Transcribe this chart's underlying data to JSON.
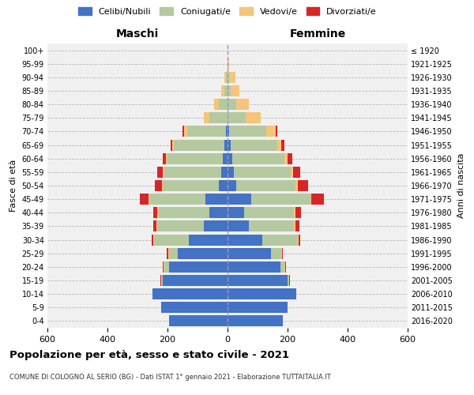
{
  "age_groups": [
    "0-4",
    "5-9",
    "10-14",
    "15-19",
    "20-24",
    "25-29",
    "30-34",
    "35-39",
    "40-44",
    "45-49",
    "50-54",
    "55-59",
    "60-64",
    "65-69",
    "70-74",
    "75-79",
    "80-84",
    "85-89",
    "90-94",
    "95-99",
    "100+"
  ],
  "birth_years": [
    "2016-2020",
    "2011-2015",
    "2006-2010",
    "2001-2005",
    "1996-2000",
    "1991-1995",
    "1986-1990",
    "1981-1985",
    "1976-1980",
    "1971-1975",
    "1966-1970",
    "1961-1965",
    "1956-1960",
    "1951-1955",
    "1946-1950",
    "1941-1945",
    "1936-1940",
    "1931-1935",
    "1926-1930",
    "1921-1925",
    "≤ 1920"
  ],
  "males": {
    "celibe": [
      195,
      220,
      250,
      215,
      195,
      165,
      130,
      80,
      60,
      75,
      30,
      20,
      15,
      10,
      5,
      0,
      0,
      0,
      0,
      0,
      0
    ],
    "coniugato": [
      0,
      0,
      0,
      5,
      15,
      30,
      115,
      155,
      170,
      185,
      185,
      190,
      185,
      170,
      130,
      60,
      30,
      10,
      5,
      0,
      0
    ],
    "vedovo": [
      0,
      0,
      0,
      1,
      2,
      2,
      3,
      3,
      3,
      3,
      3,
      5,
      5,
      5,
      10,
      20,
      15,
      10,
      5,
      0,
      0
    ],
    "divorziato": [
      0,
      0,
      0,
      2,
      3,
      5,
      5,
      10,
      15,
      30,
      25,
      20,
      10,
      5,
      5,
      0,
      0,
      0,
      0,
      0,
      0
    ]
  },
  "females": {
    "nubile": [
      185,
      200,
      230,
      200,
      175,
      145,
      115,
      70,
      55,
      80,
      30,
      20,
      15,
      10,
      5,
      0,
      0,
      0,
      0,
      0,
      0
    ],
    "coniugata": [
      0,
      0,
      0,
      5,
      15,
      35,
      120,
      150,
      165,
      195,
      195,
      190,
      175,
      155,
      125,
      60,
      30,
      10,
      5,
      0,
      0
    ],
    "vedova": [
      0,
      0,
      0,
      1,
      2,
      2,
      3,
      5,
      5,
      5,
      8,
      8,
      10,
      15,
      30,
      50,
      40,
      30,
      20,
      5,
      0
    ],
    "divorziata": [
      0,
      0,
      0,
      1,
      2,
      3,
      5,
      15,
      20,
      40,
      35,
      25,
      15,
      10,
      5,
      0,
      0,
      0,
      0,
      0,
      0
    ]
  },
  "colors": {
    "celibe": "#4472c4",
    "coniugato": "#b5c9a1",
    "vedovo": "#f5c57a",
    "divorziato": "#d9242a"
  },
  "title": "Popolazione per età, sesso e stato civile - 2021",
  "subtitle": "COMUNE DI COLOGNO AL SERIO (BG) - Dati ISTAT 1° gennaio 2021 - Elaborazione TUTTAITALIA.IT",
  "xlabel_left": "Maschi",
  "xlabel_right": "Femmine",
  "ylabel_left": "Fasce di età",
  "ylabel_right": "Anni di nascita",
  "xlim": 600,
  "bg_color": "#ffffff",
  "plot_bg": "#f0f0f0",
  "legend_labels": [
    "Celibi/Nubili",
    "Coniugati/e",
    "Vedovi/e",
    "Divorziati/e"
  ]
}
